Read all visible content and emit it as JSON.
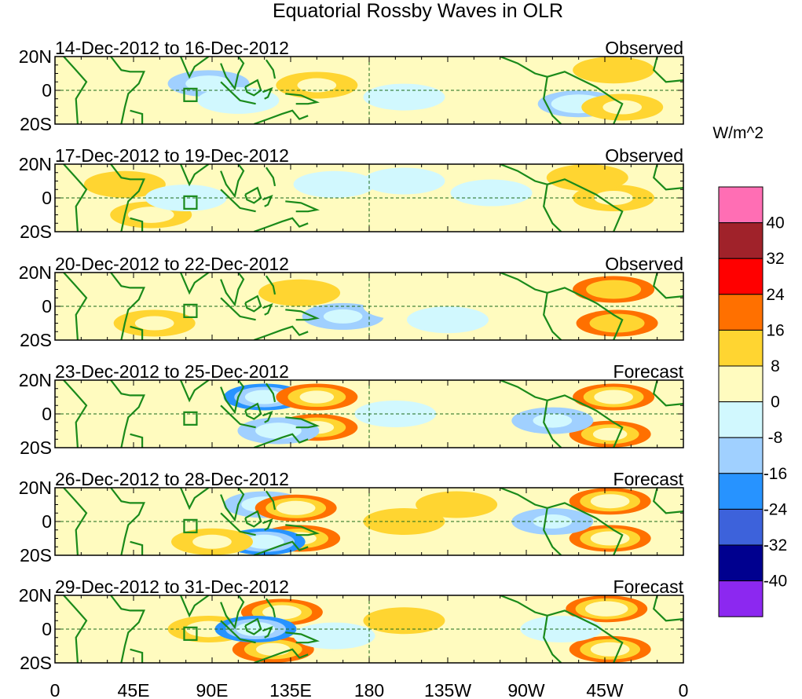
{
  "chart_data": {
    "type": "heatmap",
    "title": "Equatorial Rossby Waves in OLR",
    "units": "W/m^2",
    "x_ticks": [
      "0",
      "45E",
      "90E",
      "135E",
      "180",
      "135W",
      "90W",
      "45W",
      "0"
    ],
    "x_range": [
      0,
      360
    ],
    "y_ticks": [
      "20N",
      "0",
      "20S"
    ],
    "y_range": [
      -20,
      20
    ],
    "colorbar": {
      "levels": [
        "40",
        "32",
        "24",
        "16",
        "8",
        "0",
        "-8",
        "-16",
        "-24",
        "-32",
        "-40"
      ],
      "colors": [
        "#ff6eb4",
        "#a0222a",
        "#ff0000",
        "#ff7000",
        "#ffd531",
        "#fffbbf",
        "#d1f8fe",
        "#a0d0ff",
        "#2793ff",
        "#3d62db",
        "#00008f",
        "#8c28f0"
      ]
    },
    "panels": [
      {
        "dates": "14-Dec-2012 to 16-Dec-2012",
        "kind": "Observed",
        "anomalies": [
          {
            "lon": 38,
            "lat": 12,
            "v": 6
          },
          {
            "lon": 55,
            "lat": -8,
            "v": 6
          },
          {
            "lon": 88,
            "lat": 4,
            "v": -12
          },
          {
            "lon": 105,
            "lat": -6,
            "v": -6
          },
          {
            "lon": 150,
            "lat": 3,
            "v": 10
          },
          {
            "lon": 200,
            "lat": -4,
            "v": -6
          },
          {
            "lon": 300,
            "lat": -8,
            "v": -16
          },
          {
            "lon": 325,
            "lat": -10,
            "v": 10
          },
          {
            "lon": 320,
            "lat": 12,
            "v": 8
          }
        ]
      },
      {
        "dates": "17-Dec-2012 to 19-Dec-2012",
        "kind": "Observed",
        "anomalies": [
          {
            "lon": 55,
            "lat": -10,
            "v": 12
          },
          {
            "lon": 40,
            "lat": 8,
            "v": 8
          },
          {
            "lon": 75,
            "lat": 0,
            "v": -8
          },
          {
            "lon": 160,
            "lat": 8,
            "v": -6
          },
          {
            "lon": 200,
            "lat": 10,
            "v": -8
          },
          {
            "lon": 250,
            "lat": 3,
            "v": -8
          },
          {
            "lon": 320,
            "lat": 0,
            "v": 10
          },
          {
            "lon": 305,
            "lat": 12,
            "v": 8
          }
        ]
      },
      {
        "dates": "20-Dec-2012 to 22-Dec-2012",
        "kind": "Observed",
        "anomalies": [
          {
            "lon": 57,
            "lat": -10,
            "v": 10
          },
          {
            "lon": 140,
            "lat": 8,
            "v": 8
          },
          {
            "lon": 165,
            "lat": -6,
            "v": -10
          },
          {
            "lon": 200,
            "lat": 0,
            "v": 6
          },
          {
            "lon": 225,
            "lat": -8,
            "v": -8
          },
          {
            "lon": 320,
            "lat": 10,
            "v": 16
          },
          {
            "lon": 322,
            "lat": -10,
            "v": 16
          }
        ]
      },
      {
        "dates": "23-Dec-2012 to 25-Dec-2012",
        "kind": "Forecast",
        "anomalies": [
          {
            "lon": 120,
            "lat": 10,
            "v": -20
          },
          {
            "lon": 150,
            "lat": 10,
            "v": 18
          },
          {
            "lon": 150,
            "lat": -8,
            "v": 18
          },
          {
            "lon": 128,
            "lat": -10,
            "v": -12
          },
          {
            "lon": 195,
            "lat": 0,
            "v": -8
          },
          {
            "lon": 235,
            "lat": 10,
            "v": 6
          },
          {
            "lon": 320,
            "lat": 10,
            "v": 20
          },
          {
            "lon": 318,
            "lat": -12,
            "v": 18
          },
          {
            "lon": 285,
            "lat": -4,
            "v": -10
          }
        ]
      },
      {
        "dates": "26-Dec-2012 to 28-Dec-2012",
        "kind": "Forecast",
        "anomalies": [
          {
            "lon": 120,
            "lat": 10,
            "v": -12
          },
          {
            "lon": 138,
            "lat": 8,
            "v": 20
          },
          {
            "lon": 140,
            "lat": -10,
            "v": 18
          },
          {
            "lon": 120,
            "lat": -12,
            "v": -20
          },
          {
            "lon": 90,
            "lat": -12,
            "v": 10
          },
          {
            "lon": 200,
            "lat": 0,
            "v": 8
          },
          {
            "lon": 230,
            "lat": 10,
            "v": 8
          },
          {
            "lon": 318,
            "lat": 12,
            "v": 20
          },
          {
            "lon": 318,
            "lat": -10,
            "v": 20
          },
          {
            "lon": 285,
            "lat": 0,
            "v": -10
          }
        ]
      },
      {
        "dates": "29-Dec-2012 to 31-Dec-2012",
        "kind": "Forecast",
        "anomalies": [
          {
            "lon": 88,
            "lat": 0,
            "v": 12
          },
          {
            "lon": 130,
            "lat": 10,
            "v": 20
          },
          {
            "lon": 125,
            "lat": -12,
            "v": 18
          },
          {
            "lon": 115,
            "lat": 0,
            "v": -20
          },
          {
            "lon": 160,
            "lat": -4,
            "v": -8
          },
          {
            "lon": 200,
            "lat": 5,
            "v": 8
          },
          {
            "lon": 316,
            "lat": 12,
            "v": 22
          },
          {
            "lon": 318,
            "lat": -12,
            "v": 20
          },
          {
            "lon": 290,
            "lat": 0,
            "v": -8
          }
        ]
      }
    ]
  }
}
